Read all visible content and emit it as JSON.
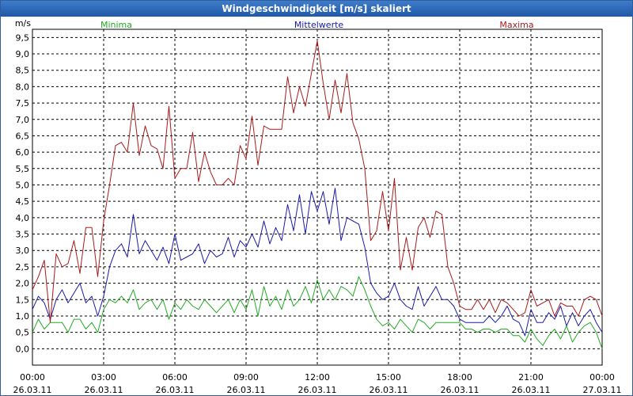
{
  "window": {
    "title": "Windgeschwindigkeit [m/s] skaliert"
  },
  "colors": {
    "minima": "#22aa22",
    "mittelwerte": "#1a1aaa",
    "maxima": "#aa1a1a",
    "grid": "#000000",
    "titlebar": "#2f68b8"
  },
  "chart_data": {
    "type": "line",
    "title": "Windgeschwindigkeit [m/s] skaliert",
    "ylabel": "m/s",
    "xlabel": "",
    "ylim": [
      -0.5,
      9.75
    ],
    "yticks": [
      "0,0",
      "0,5",
      "1,0",
      "1,5",
      "2,0",
      "2,5",
      "3,0",
      "3,5",
      "4,0",
      "4,5",
      "5,0",
      "5,5",
      "6,0",
      "6,5",
      "7,0",
      "7,5",
      "8,0",
      "8,5",
      "9,0",
      "9,5"
    ],
    "xticks": [
      {
        "time": "00:00",
        "date": "26.03.11"
      },
      {
        "time": "03:00",
        "date": "26.03.11"
      },
      {
        "time": "06:00",
        "date": "26.03.11"
      },
      {
        "time": "09:00",
        "date": "26.03.11"
      },
      {
        "time": "12:00",
        "date": "26.03.11"
      },
      {
        "time": "15:00",
        "date": "26.03.11"
      },
      {
        "time": "18:00",
        "date": "26.03.11"
      },
      {
        "time": "21:00",
        "date": "26.03.11"
      },
      {
        "time": "00:00",
        "date": "27.03.11"
      }
    ],
    "x_hours": [
      0,
      0.25,
      0.5,
      0.75,
      1,
      1.25,
      1.5,
      1.75,
      2,
      2.25,
      2.5,
      2.75,
      3,
      3.25,
      3.5,
      3.75,
      4,
      4.25,
      4.5,
      4.75,
      5,
      5.25,
      5.5,
      5.75,
      6,
      6.25,
      6.5,
      6.75,
      7,
      7.25,
      7.5,
      7.75,
      8,
      8.25,
      8.5,
      8.75,
      9,
      9.25,
      9.5,
      9.75,
      10,
      10.25,
      10.5,
      10.75,
      11,
      11.25,
      11.5,
      11.75,
      12,
      12.25,
      12.5,
      12.75,
      13,
      13.25,
      13.5,
      13.75,
      14,
      14.25,
      14.5,
      14.75,
      15,
      15.25,
      15.5,
      15.75,
      16,
      16.25,
      16.5,
      16.75,
      17,
      17.25,
      17.5,
      17.75,
      18,
      18.25,
      18.5,
      18.75,
      19,
      19.25,
      19.5,
      19.75,
      20,
      20.25,
      20.5,
      20.75,
      21,
      21.25,
      21.5,
      21.75,
      22,
      22.25,
      22.5,
      22.75,
      23,
      23.25,
      23.5,
      23.75,
      24
    ],
    "series": [
      {
        "name": "Minima",
        "values": [
          0.5,
          0.9,
          0.6,
          0.8,
          0.8,
          0.8,
          0.5,
          0.9,
          0.9,
          0.6,
          0.8,
          0.5,
          1.2,
          1.5,
          1.4,
          1.6,
          1.4,
          1.8,
          1.2,
          1.4,
          1.5,
          1.2,
          1.5,
          0.9,
          1.4,
          1.2,
          1.5,
          1.3,
          1.2,
          1.5,
          1.3,
          1.1,
          1.3,
          1.5,
          1.1,
          1.5,
          1.2,
          1.8,
          1.0,
          1.9,
          1.3,
          1.6,
          1.2,
          1.8,
          1.3,
          1.5,
          1.9,
          1.4,
          2.1,
          1.5,
          1.8,
          1.5,
          1.9,
          1.8,
          1.6,
          2.2,
          1.8,
          1.3,
          0.9,
          0.7,
          0.8,
          0.6,
          0.9,
          0.7,
          0.5,
          0.9,
          0.8,
          0.6,
          0.8,
          0.8,
          0.8,
          0.8,
          0.8,
          0.6,
          0.6,
          0.5,
          0.6,
          0.6,
          0.5,
          0.6,
          0.6,
          0.4,
          0.4,
          0.2,
          0.6,
          0.3,
          0.1,
          0.4,
          0.6,
          0.3,
          0.7,
          0.2,
          0.5,
          0.7,
          0.8,
          0.5,
          0.0
        ],
        "color": "#22aa22"
      },
      {
        "name": "Mittelwerte",
        "values": [
          1.2,
          1.6,
          1.4,
          0.9,
          1.5,
          1.8,
          1.4,
          1.7,
          2.0,
          1.4,
          1.6,
          1.0,
          1.6,
          2.5,
          3.0,
          3.2,
          2.8,
          4.1,
          2.9,
          3.3,
          3.0,
          2.7,
          3.1,
          2.6,
          3.5,
          2.7,
          2.8,
          2.9,
          3.2,
          2.6,
          3.0,
          2.8,
          2.9,
          3.4,
          2.8,
          3.3,
          3.1,
          3.5,
          3.1,
          3.9,
          3.2,
          3.7,
          3.3,
          4.4,
          3.6,
          4.7,
          3.5,
          4.8,
          4.2,
          4.8,
          3.8,
          4.9,
          3.3,
          4.0,
          3.9,
          3.8,
          3.1,
          2.0,
          1.7,
          1.5,
          1.6,
          2.0,
          1.5,
          1.3,
          1.2,
          1.9,
          1.3,
          1.6,
          1.9,
          1.5,
          1.5,
          1.3,
          0.9,
          0.8,
          0.8,
          0.8,
          0.8,
          1.0,
          0.8,
          1.0,
          1.3,
          0.9,
          0.8,
          0.4,
          1.2,
          0.8,
          0.8,
          1.1,
          0.9,
          1.3,
          0.7,
          1.1,
          0.7,
          1.0,
          1.2,
          0.8,
          0.5
        ],
        "color": "#1a1aaa"
      },
      {
        "name": "Maxima",
        "values": [
          1.8,
          2.2,
          2.7,
          0.8,
          2.9,
          2.5,
          2.6,
          3.3,
          2.3,
          3.7,
          3.7,
          2.2,
          3.9,
          5.0,
          6.2,
          6.3,
          6.0,
          7.5,
          5.9,
          6.8,
          6.2,
          6.1,
          5.5,
          7.4,
          5.2,
          5.5,
          5.5,
          6.6,
          5.1,
          6.0,
          5.4,
          5.0,
          5.0,
          5.2,
          5.0,
          6.2,
          5.8,
          7.1,
          5.6,
          6.8,
          6.7,
          6.7,
          6.7,
          8.3,
          7.2,
          8.0,
          7.4,
          8.4,
          9.4,
          8.1,
          7.0,
          8.2,
          7.2,
          8.4,
          6.9,
          6.4,
          5.5,
          3.3,
          3.6,
          4.8,
          3.6,
          5.2,
          2.4,
          3.4,
          2.4,
          3.7,
          4.0,
          3.4,
          4.2,
          4.1,
          2.5,
          2.0,
          1.3,
          1.2,
          1.2,
          1.5,
          1.2,
          1.5,
          1.1,
          1.5,
          1.4,
          1.2,
          1.0,
          1.1,
          1.8,
          1.3,
          1.4,
          1.5,
          1.0,
          1.4,
          1.3,
          1.3,
          1.0,
          1.5,
          1.6,
          1.5,
          1.0
        ],
        "color": "#aa1a1a"
      }
    ],
    "grid": true,
    "legend": "top"
  }
}
